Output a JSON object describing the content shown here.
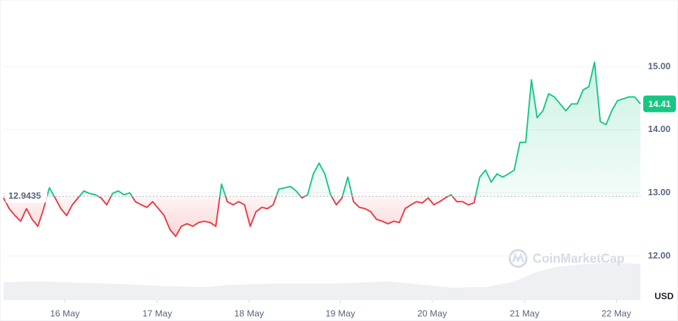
{
  "chart_data": {
    "type": "line",
    "xlim": [
      0,
      111
    ],
    "xticks": [
      {
        "value": 10.7,
        "label": "16 May"
      },
      {
        "value": 26.8,
        "label": "17 May"
      },
      {
        "value": 42.8,
        "label": "18 May"
      },
      {
        "value": 58.7,
        "label": "19 May"
      },
      {
        "value": 74.7,
        "label": "20 May"
      },
      {
        "value": 90.8,
        "label": "21 May"
      },
      {
        "value": 106.8,
        "label": "22 May"
      }
    ],
    "ylim": [
      11.3,
      16.0
    ],
    "yticks": [
      {
        "value": 12,
        "label": "12.00"
      },
      {
        "value": 13,
        "label": "13.00"
      },
      {
        "value": 14,
        "label": "14.00"
      },
      {
        "value": 15,
        "label": "15.00"
      }
    ],
    "grid": true,
    "colors": {
      "above": "#16c784",
      "below": "#ea3943"
    },
    "baseline": 12.9435,
    "last_price": 14.41,
    "currency_label": "USD",
    "watermark": "CoinMarketCap",
    "series": [
      {
        "values": [
          12.92,
          12.75,
          12.64,
          12.55,
          12.75,
          12.58,
          12.47,
          12.75,
          13.08,
          12.92,
          12.75,
          12.64,
          12.81,
          12.92,
          13.03,
          12.99,
          12.97,
          12.92,
          12.81,
          12.99,
          13.03,
          12.97,
          13.0,
          12.86,
          12.81,
          12.77,
          12.86,
          12.75,
          12.64,
          12.42,
          12.31,
          12.47,
          12.51,
          12.47,
          12.53,
          12.55,
          12.53,
          12.47,
          13.14,
          12.86,
          12.81,
          12.86,
          12.81,
          12.47,
          12.7,
          12.77,
          12.75,
          12.81,
          13.06,
          13.08,
          13.1,
          13.03,
          12.92,
          12.97,
          13.3,
          13.47,
          13.3,
          12.97,
          12.81,
          12.92,
          13.25,
          12.86,
          12.77,
          12.75,
          12.7,
          12.58,
          12.55,
          12.51,
          12.55,
          12.53,
          12.75,
          12.81,
          12.86,
          12.84,
          12.92,
          12.81,
          12.86,
          12.92,
          12.97,
          12.86,
          12.86,
          12.81,
          12.84,
          13.25,
          13.36,
          13.17,
          13.3,
          13.25,
          13.3,
          13.36,
          13.8,
          13.8,
          14.79,
          14.19,
          14.3,
          14.57,
          14.52,
          14.41,
          14.3,
          14.41,
          14.41,
          14.63,
          14.68,
          15.07,
          14.13,
          14.08,
          14.3,
          14.46,
          14.49,
          14.52,
          14.52,
          14.41
        ]
      }
    ]
  }
}
